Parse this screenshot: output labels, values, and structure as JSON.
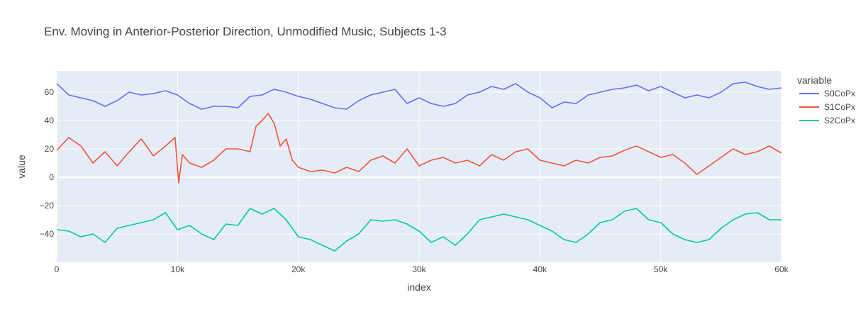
{
  "chart_data": {
    "type": "line",
    "title": "Env. Moving in Anterior-Posterior Direction, Unmodified Music, Subjects 1-3",
    "xlabel": "index",
    "ylabel": "value",
    "xlim": [
      0,
      60000
    ],
    "ylim": [
      -60,
      75
    ],
    "xticks": [
      0,
      10000,
      20000,
      30000,
      40000,
      50000,
      60000
    ],
    "xtick_labels": [
      "0",
      "10k",
      "20k",
      "30k",
      "40k",
      "50k",
      "60k"
    ],
    "yticks": [
      -40,
      -20,
      0,
      20,
      40,
      60
    ],
    "ytick_labels": [
      "−40",
      "−20",
      "0",
      "20",
      "40",
      "60"
    ],
    "grid": true,
    "legend": {
      "title": "variable",
      "placement": "right"
    },
    "series": [
      {
        "name": "S0CoPx",
        "color": "#636efa",
        "x": [
          0,
          1000,
          2000,
          3000,
          4000,
          5000,
          6000,
          7000,
          8000,
          9000,
          10000,
          11000,
          12000,
          13000,
          14000,
          15000,
          16000,
          17000,
          18000,
          19000,
          20000,
          21000,
          22000,
          23000,
          24000,
          25000,
          26000,
          27000,
          28000,
          29000,
          30000,
          31000,
          32000,
          33000,
          34000,
          35000,
          36000,
          37000,
          38000,
          39000,
          40000,
          41000,
          42000,
          43000,
          44000,
          45000,
          46000,
          47000,
          48000,
          49000,
          50000,
          51000,
          52000,
          53000,
          54000,
          55000,
          56000,
          57000,
          58000,
          59000,
          60000
        ],
        "values": [
          66,
          58,
          56,
          54,
          50,
          54,
          60,
          58,
          59,
          61,
          58,
          52,
          48,
          50,
          50,
          49,
          57,
          58,
          62,
          60,
          57,
          55,
          52,
          49,
          48,
          54,
          58,
          60,
          62,
          52,
          56,
          52,
          50,
          52,
          58,
          60,
          64,
          62,
          66,
          60,
          56,
          49,
          53,
          52,
          58,
          60,
          62,
          63,
          65,
          61,
          64,
          60,
          56,
          58,
          56,
          60,
          66,
          67,
          64,
          62,
          63
        ]
      },
      {
        "name": "S1CoPx",
        "color": "#ef553b",
        "x": [
          0,
          1000,
          2000,
          3000,
          4000,
          5000,
          6000,
          7000,
          8000,
          9000,
          9800,
          10100,
          10400,
          11000,
          12000,
          13000,
          14000,
          15000,
          16000,
          16500,
          17000,
          17500,
          18000,
          18500,
          19000,
          19500,
          20000,
          21000,
          22000,
          23000,
          24000,
          25000,
          26000,
          27000,
          28000,
          29000,
          30000,
          31000,
          32000,
          33000,
          34000,
          35000,
          36000,
          37000,
          38000,
          39000,
          40000,
          41000,
          42000,
          43000,
          44000,
          45000,
          46000,
          47000,
          48000,
          49000,
          50000,
          51000,
          52000,
          53000,
          54000,
          55000,
          56000,
          57000,
          58000,
          59000,
          60000
        ],
        "values": [
          19,
          28,
          22,
          10,
          18,
          8,
          18,
          27,
          15,
          22,
          28,
          -4,
          16,
          10,
          7,
          12,
          20,
          20,
          18,
          36,
          40,
          45,
          38,
          22,
          27,
          12,
          7,
          4,
          5,
          3,
          7,
          4,
          12,
          15,
          10,
          20,
          8,
          12,
          14,
          10,
          12,
          8,
          16,
          12,
          18,
          20,
          12,
          10,
          8,
          12,
          10,
          14,
          15,
          19,
          22,
          18,
          14,
          16,
          10,
          2,
          8,
          14,
          20,
          16,
          18,
          22,
          17
        ]
      },
      {
        "name": "S2CoPx",
        "color": "#00cc96",
        "x": [
          0,
          1000,
          2000,
          3000,
          4000,
          5000,
          6000,
          7000,
          8000,
          9000,
          10000,
          11000,
          12000,
          13000,
          14000,
          15000,
          16000,
          17000,
          18000,
          19000,
          20000,
          21000,
          22000,
          23000,
          24000,
          25000,
          26000,
          27000,
          28000,
          29000,
          30000,
          31000,
          32000,
          33000,
          34000,
          35000,
          36000,
          37000,
          38000,
          39000,
          40000,
          41000,
          42000,
          43000,
          44000,
          45000,
          46000,
          47000,
          48000,
          49000,
          50000,
          51000,
          52000,
          53000,
          54000,
          55000,
          56000,
          57000,
          58000,
          59000,
          60000
        ],
        "values": [
          -37,
          -38,
          -42,
          -40,
          -46,
          -36,
          -34,
          -32,
          -30,
          -25,
          -37,
          -34,
          -40,
          -44,
          -33,
          -34,
          -22,
          -26,
          -22,
          -30,
          -42,
          -44,
          -48,
          -52,
          -45,
          -40,
          -30,
          -31,
          -30,
          -33,
          -38,
          -46,
          -42,
          -48,
          -40,
          -30,
          -28,
          -26,
          -28,
          -30,
          -34,
          -38,
          -44,
          -46,
          -40,
          -32,
          -30,
          -24,
          -22,
          -30,
          -32,
          -40,
          -44,
          -46,
          -44,
          -36,
          -30,
          -26,
          -25,
          -30,
          -30
        ]
      }
    ]
  }
}
